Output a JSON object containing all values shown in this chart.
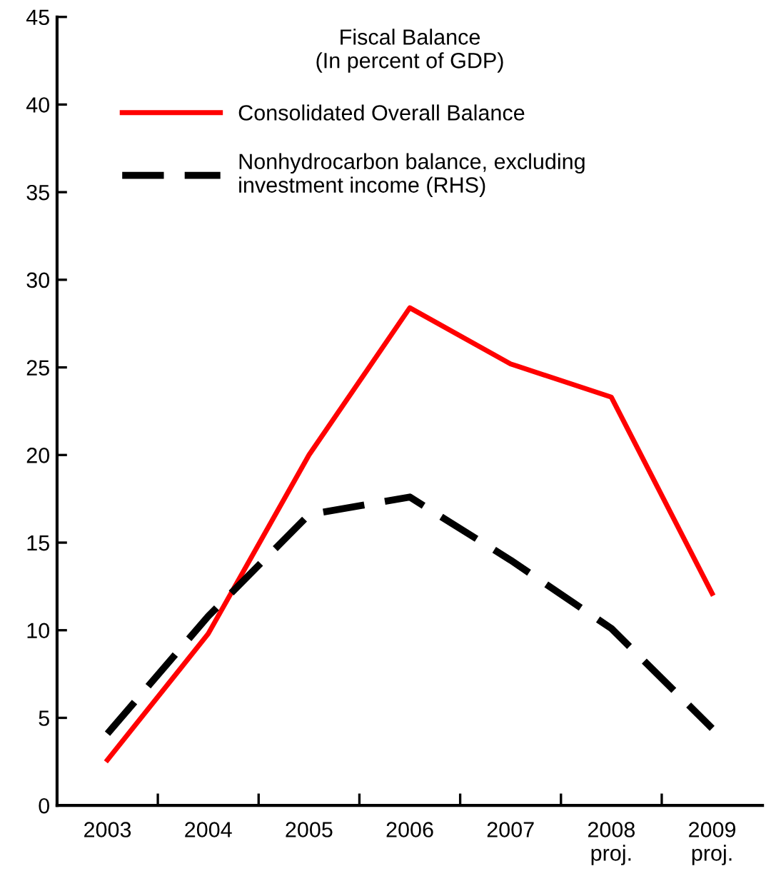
{
  "chart_data": {
    "type": "line",
    "title": "Fiscal Balance",
    "subtitle": "(In percent of GDP)",
    "categories": [
      "2003",
      "2004",
      "2005",
      "2006",
      "2007",
      "2008\nproj.",
      "2009\nproj."
    ],
    "series": [
      {
        "name": "Consolidated Overall Balance",
        "color": "#ff0000",
        "line_style": "solid",
        "values": [
          2.6,
          9.8,
          20.0,
          28.4,
          25.2,
          23.3,
          12.1
        ]
      },
      {
        "name": "Nonhydrocarbon balance, excluding\ninvestment income (RHS)",
        "color": "#000000",
        "line_style": "dashed",
        "values": [
          4.1,
          10.8,
          16.6,
          17.6,
          14.0,
          10.1,
          4.4
        ]
      }
    ],
    "ylim": [
      0,
      45
    ],
    "yticks": [
      0,
      5,
      10,
      15,
      20,
      25,
      30,
      35,
      40,
      45
    ],
    "grid": false,
    "legend": "top left",
    "marker": "none"
  }
}
